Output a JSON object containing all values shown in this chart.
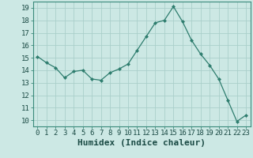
{
  "x": [
    0,
    1,
    2,
    3,
    4,
    5,
    6,
    7,
    8,
    9,
    10,
    11,
    12,
    13,
    14,
    15,
    16,
    17,
    18,
    19,
    20,
    21,
    22,
    23
  ],
  "y": [
    15.1,
    14.6,
    14.2,
    13.4,
    13.9,
    14.0,
    13.3,
    13.2,
    13.8,
    14.1,
    14.5,
    15.6,
    16.7,
    17.8,
    18.0,
    19.1,
    17.9,
    16.4,
    15.3,
    14.4,
    13.3,
    11.6,
    9.9,
    10.4
  ],
  "line_color": "#2e7d6e",
  "marker": "D",
  "marker_size": 2.0,
  "bg_color": "#cce8e4",
  "grid_color": "#aacfca",
  "xlabel": "Humidex (Indice chaleur)",
  "ylabel": "",
  "xlim": [
    -0.5,
    23.5
  ],
  "ylim": [
    9.5,
    19.5
  ],
  "yticks": [
    10,
    11,
    12,
    13,
    14,
    15,
    16,
    17,
    18,
    19
  ],
  "xticks": [
    0,
    1,
    2,
    3,
    4,
    5,
    6,
    7,
    8,
    9,
    10,
    11,
    12,
    13,
    14,
    15,
    16,
    17,
    18,
    19,
    20,
    21,
    22,
    23
  ],
  "tick_fontsize": 6.5,
  "xlabel_fontsize": 8.0,
  "spine_color": "#3a8a7a"
}
